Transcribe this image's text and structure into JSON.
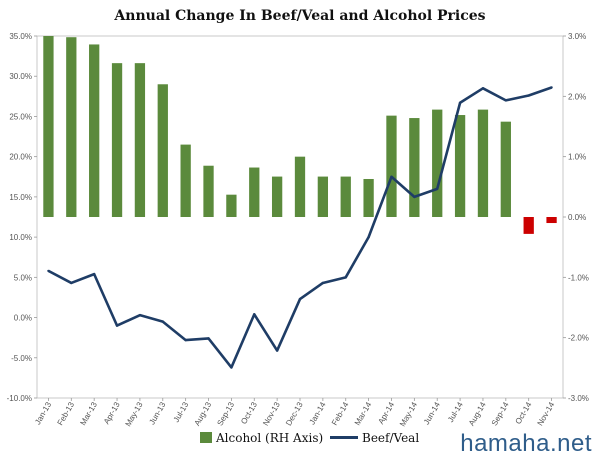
{
  "chart_data": {
    "type": "bar+line",
    "title": "Annual Change In Beef/Veal and Alcohol Prices",
    "categories": [
      "Jan-13",
      "Feb-13",
      "Mar-13",
      "Apr-13",
      "May-13",
      "Jun-13",
      "Jul-13",
      "Aug-13",
      "Sep-13",
      "Oct-13",
      "Nov-13",
      "Dec-13",
      "Jan-14",
      "Feb-14",
      "Mar-14",
      "Apr-14",
      "May-14",
      "Jun-14",
      "Jul-14",
      "Aug-14",
      "Sep-14",
      "Oct-14",
      "Nov-14"
    ],
    "series": [
      {
        "name": "Alcohol (RH Axis)",
        "kind": "bar",
        "axis": "right",
        "color": "#5b8a3c",
        "negative_color": "#cc0000",
        "values": [
          3.0,
          2.98,
          2.86,
          2.55,
          2.55,
          2.2,
          1.2,
          0.85,
          0.37,
          0.82,
          0.67,
          1.0,
          0.67,
          0.67,
          0.63,
          1.68,
          1.64,
          1.78,
          1.69,
          1.78,
          1.58,
          -0.28,
          -0.1
        ]
      },
      {
        "name": "Beef/Veal",
        "kind": "line",
        "axis": "left",
        "color": "#1f3d66",
        "values": [
          5.8,
          4.3,
          5.4,
          -1.0,
          0.3,
          -0.5,
          -2.8,
          -2.6,
          -6.2,
          0.4,
          -4.1,
          2.3,
          4.3,
          5.0,
          10.0,
          17.5,
          15.0,
          16.0,
          26.7,
          28.5,
          27.0,
          27.6,
          28.6
        ]
      }
    ],
    "y_left": {
      "min": -10,
      "max": 35,
      "step": 5,
      "ticks": [
        "-10.0%",
        "-5.0%",
        "0.0%",
        "5.0%",
        "10.0%",
        "15.0%",
        "20.0%",
        "25.0%",
        "30.0%",
        "35.0%"
      ]
    },
    "y_right": {
      "min": -3,
      "max": 3,
      "step": 1,
      "ticks": [
        "-3.0%",
        "-2.0%",
        "-1.0%",
        "0.0%",
        "1.0%",
        "2.0%",
        "3.0%"
      ]
    },
    "grid": false,
    "legend": "bottom-center"
  },
  "watermark": "hamaha.net"
}
